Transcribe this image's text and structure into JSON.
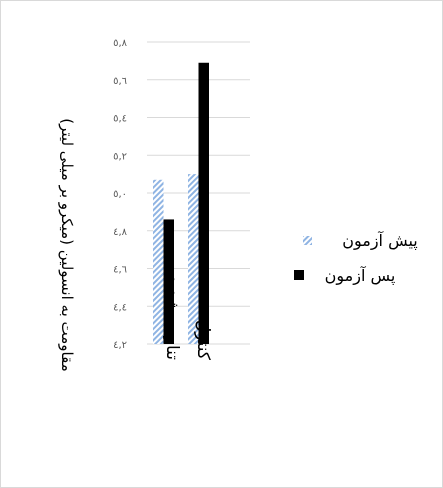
{
  "chart_data": {
    "type": "bar",
    "title": "",
    "ylabel": "مقاومت به انسولین (میکرو بر میلی لیتر)",
    "xlabel": "",
    "categories": [
      "تناوبی شدید",
      "کنترل"
    ],
    "series": [
      {
        "name": "پیش آزمون",
        "values": [
          5.07,
          5.1
        ],
        "color": "#8fb4e3",
        "pattern": "diagonal-hatch"
      },
      {
        "name": "پس آزمون",
        "values": [
          4.86,
          5.69
        ],
        "color": "#000000",
        "pattern": "solid"
      }
    ],
    "ylim": [
      4.2,
      5.8
    ],
    "yticks": [
      4.2,
      4.4,
      4.6,
      4.8,
      5.0,
      5.2,
      5.4,
      5.6,
      5.8
    ],
    "ytick_labels": [
      "٤,٢",
      "٤,٤",
      "٤,٦",
      "٤,٨",
      "٥,٠",
      "٥,٢",
      "٥,٤",
      "٥,٦",
      "٥,٨"
    ],
    "grid": true,
    "legend_position": "right"
  }
}
